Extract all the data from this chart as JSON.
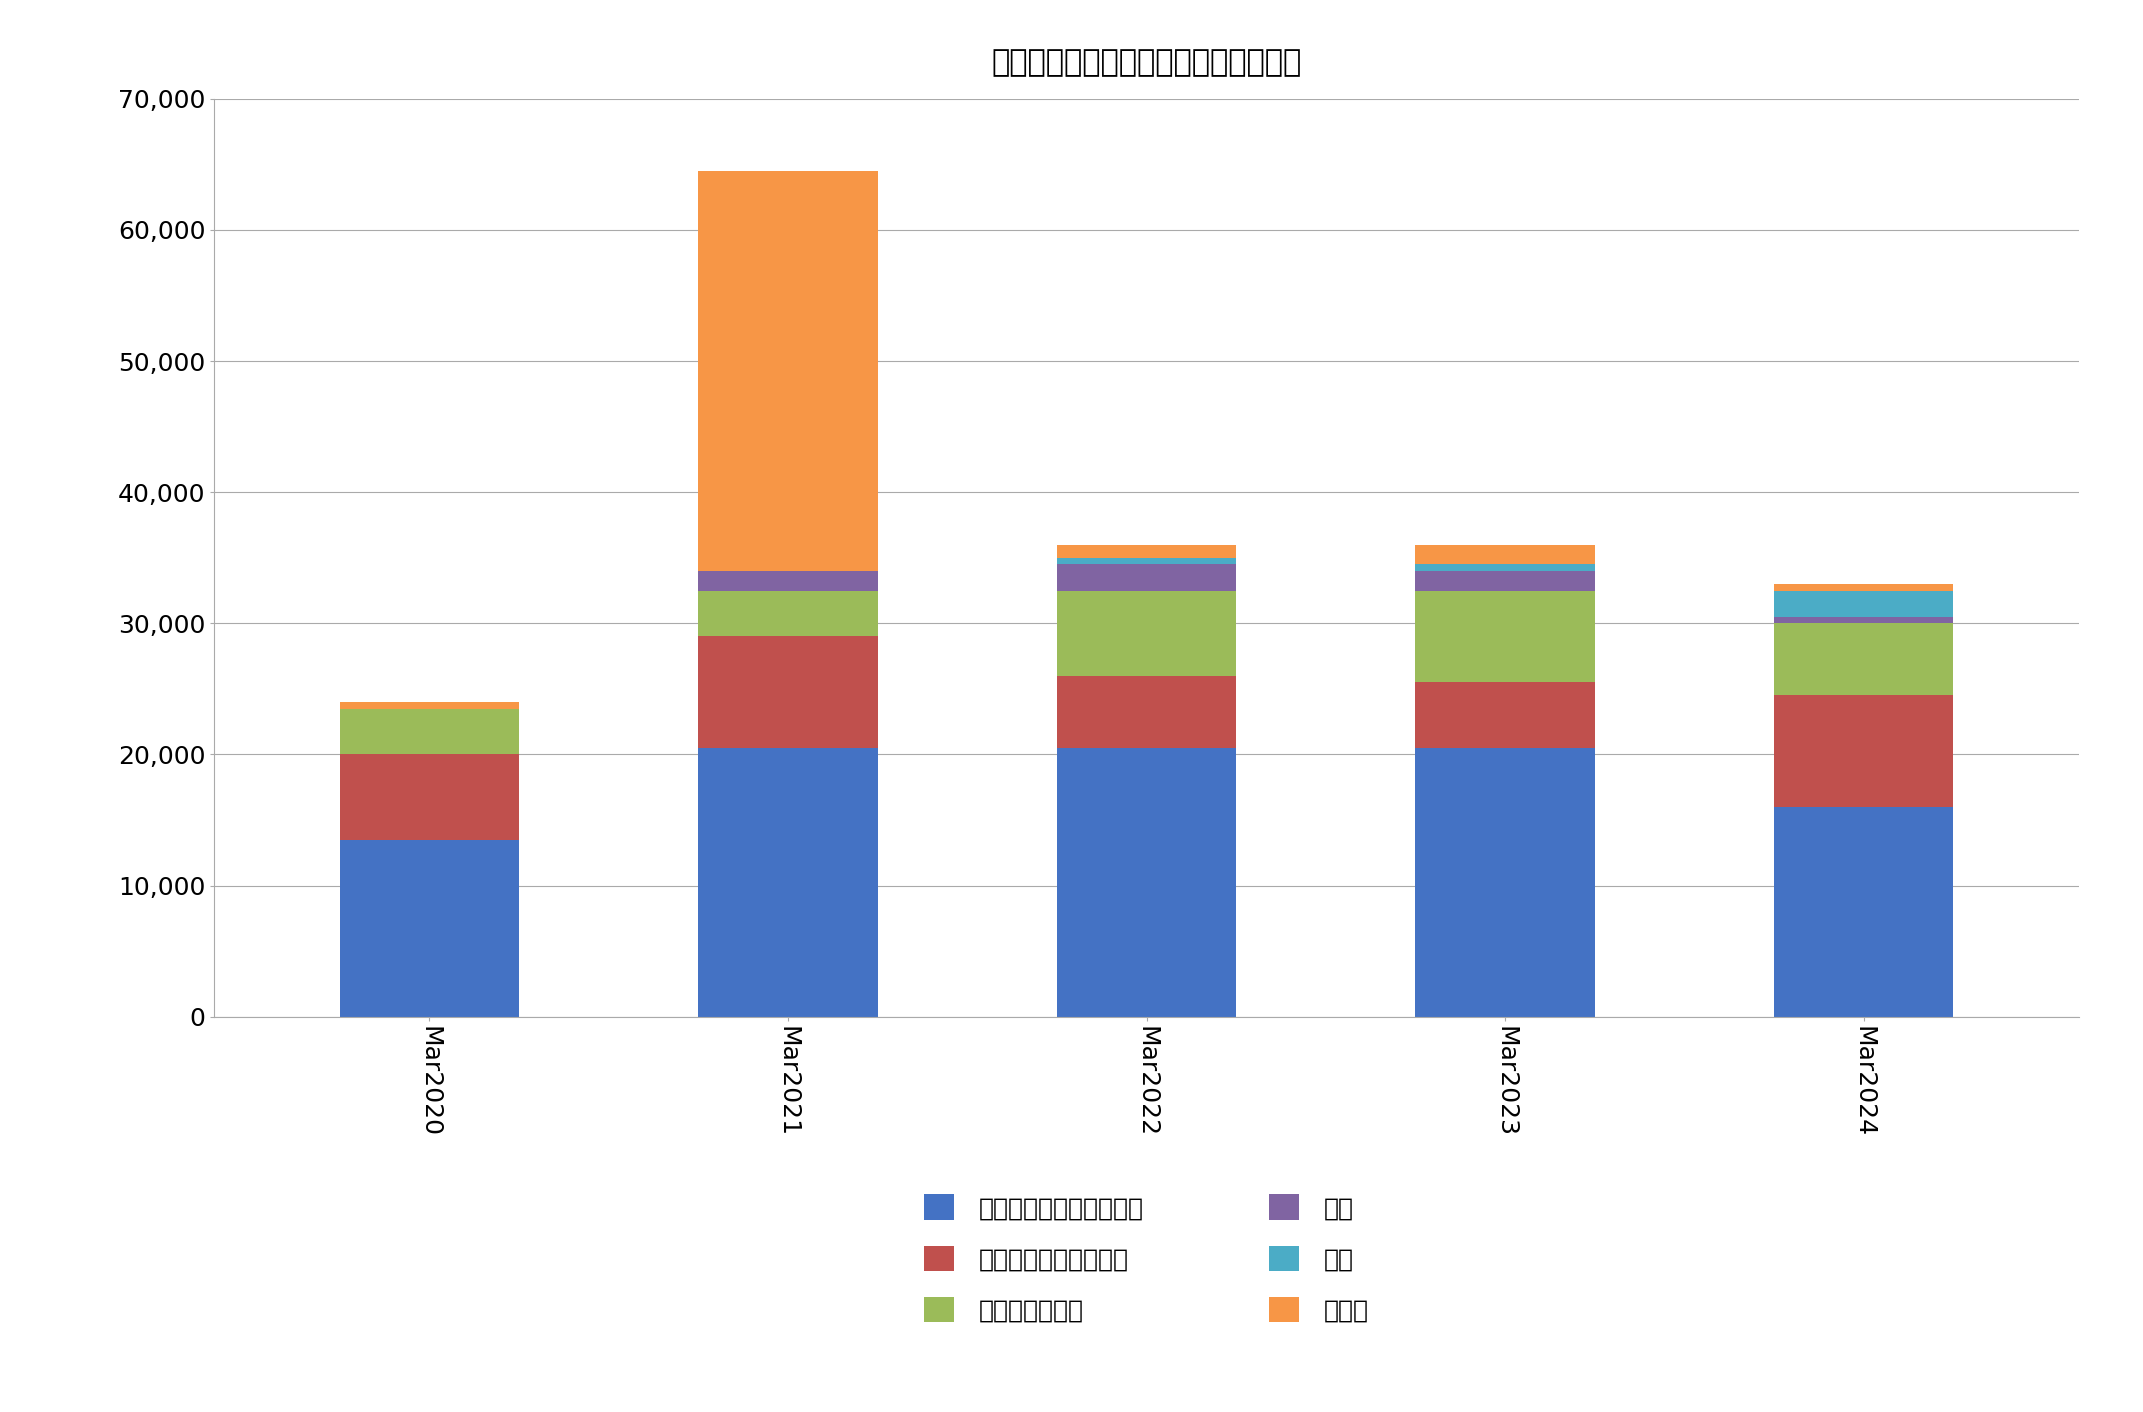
{
  "categories": [
    "Mar2020",
    "Mar2021",
    "Mar2022",
    "Mar2023",
    "Mar2024"
  ],
  "series": {
    "デジタル家電専門店運営": [
      13500,
      20500,
      20500,
      20500,
      16000
    ],
    "キャリアショップ運営": [
      6500,
      8500,
      5500,
      5000,
      8500
    ],
    "インターネット": [
      3500,
      3500,
      6500,
      7000,
      5500
    ],
    "海外": [
      0,
      1500,
      2000,
      1500,
      500
    ],
    "金融": [
      0,
      0,
      500,
      500,
      2000
    ],
    "その他": [
      500,
      30500,
      1000,
      1500,
      500
    ]
  },
  "colors": {
    "デジタル家電専門店運営": "#4472C4",
    "キャリアショップ運営": "#C0504D",
    "インターネット": "#9BBB59",
    "海外": "#8064A2",
    "金融": "#4BACC6",
    "その他": "#F79646"
  },
  "title": "ノジマ経常利益構成（単位：百万円）",
  "ylim": [
    0,
    70000
  ],
  "yticks": [
    0,
    10000,
    20000,
    30000,
    40000,
    50000,
    60000,
    70000
  ],
  "bar_width": 0.5,
  "legend_left": [
    "デジタル家電専門店運営",
    "インターネット",
    "金融"
  ],
  "legend_right": [
    "キャリアショップ運営",
    "海外",
    "その他"
  ],
  "background_color": "#FFFFFF",
  "grid_color": "#AAAAAA",
  "title_fontsize": 22,
  "tick_fontsize": 18,
  "legend_fontsize": 18
}
